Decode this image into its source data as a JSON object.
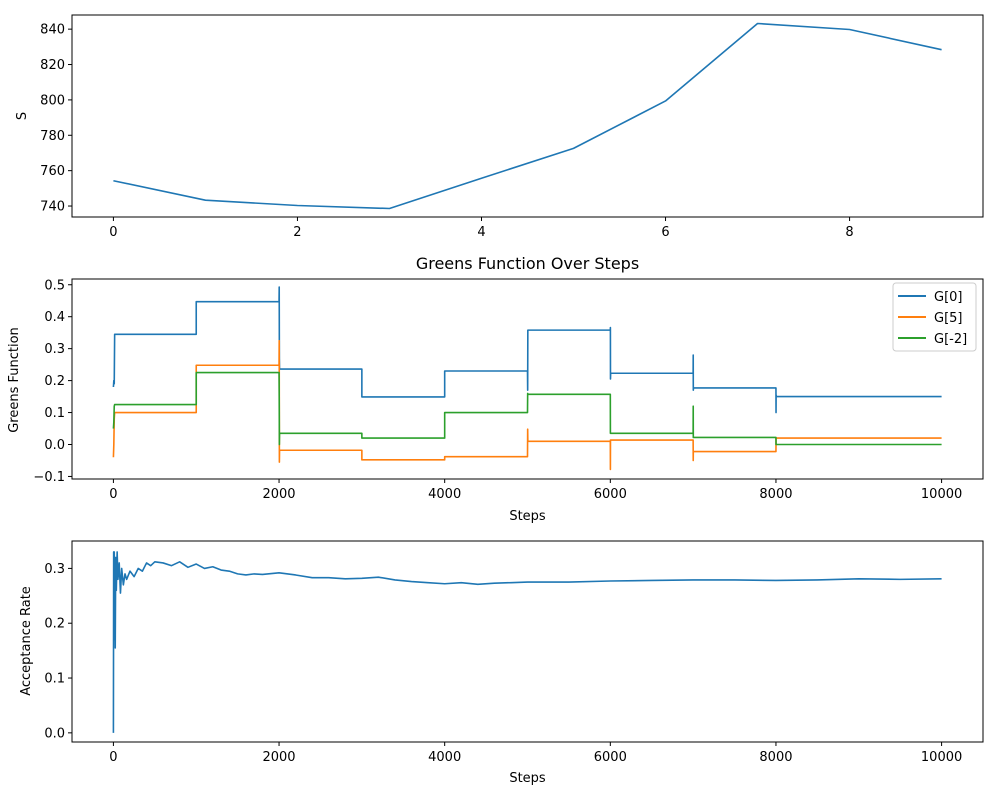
{
  "chart_data": [
    {
      "type": "line",
      "title": "",
      "xlabel": "",
      "ylabel": "S",
      "xlim": [
        -0.45,
        9.45
      ],
      "ylim": [
        733.8,
        848.0
      ],
      "xticks": [
        0,
        2,
        4,
        6,
        8
      ],
      "yticks": [
        740,
        760,
        780,
        800,
        820,
        840
      ],
      "grid": false,
      "series": [
        {
          "color": "#1f77b4",
          "x": [
            0,
            1,
            2,
            3,
            4,
            5,
            6,
            7,
            8,
            9
          ],
          "y": [
            754.3,
            743.3,
            740.3,
            738.6,
            755.7,
            772.6,
            799.4,
            843.2,
            839.8,
            828.4
          ]
        }
      ]
    },
    {
      "type": "line",
      "title": "Greens Function Over Steps",
      "xlabel": "Steps",
      "ylabel": "Greens Function",
      "xlim": [
        -500,
        10500
      ],
      "ylim": [
        -0.108,
        0.518
      ],
      "xticks": [
        0,
        2000,
        4000,
        6000,
        8000,
        10000
      ],
      "yticks": [
        -0.1,
        0.0,
        0.1,
        0.2,
        0.3,
        0.4,
        0.5
      ],
      "grid": false,
      "legend_position": "top-right",
      "series": [
        {
          "name": "G[0]",
          "color": "#1f77b4",
          "x": [
            0,
            5,
            10,
            15,
            1000,
            1000,
            2000,
            2002,
            2004,
            2006,
            3000,
            3000,
            4000,
            4000,
            5000,
            5002,
            5004,
            6000,
            6001,
            6002,
            6004,
            7000,
            7001,
            7002,
            7004,
            8000,
            8001,
            8002,
            8004,
            10000
          ],
          "y": [
            0.18,
            0.2,
            0.19,
            0.345,
            0.345,
            0.447,
            0.447,
            0.493,
            0.27,
            0.236,
            0.236,
            0.149,
            0.149,
            0.23,
            0.23,
            0.17,
            0.358,
            0.358,
            0.366,
            0.205,
            0.223,
            0.223,
            0.28,
            0.17,
            0.177,
            0.177,
            0.1,
            0.155,
            0.15,
            0.15
          ]
        },
        {
          "name": "G[5]",
          "color": "#ff7f0e",
          "x": [
            0,
            5,
            10,
            15,
            1000,
            1000,
            2000,
            2002,
            2004,
            2006,
            3000,
            3000,
            4000,
            4000,
            5000,
            5002,
            5004,
            6000,
            6001,
            6002,
            6004,
            7000,
            7001,
            7002,
            7004,
            8000,
            8001,
            10000
          ],
          "y": [
            -0.04,
            0.0,
            0.08,
            0.1,
            0.1,
            0.248,
            0.248,
            0.325,
            -0.055,
            -0.018,
            -0.018,
            -0.048,
            -0.048,
            -0.038,
            -0.038,
            0.048,
            0.01,
            0.01,
            -0.078,
            0.014,
            0.014,
            0.014,
            -0.05,
            -0.022,
            -0.022,
            -0.022,
            0.02,
            0.02
          ]
        },
        {
          "name": "G[-2]",
          "color": "#2ca02c",
          "x": [
            0,
            5,
            10,
            15,
            1000,
            1000,
            2000,
            2002,
            2004,
            2006,
            3000,
            3000,
            4000,
            4000,
            5000,
            5002,
            5004,
            6000,
            6001,
            6002,
            7000,
            7001,
            7002,
            7004,
            8000,
            8001,
            10000
          ],
          "y": [
            0.05,
            0.07,
            0.12,
            0.125,
            0.125,
            0.225,
            0.225,
            0.15,
            0.0,
            0.035,
            0.035,
            0.02,
            0.02,
            0.1,
            0.1,
            0.16,
            0.157,
            0.157,
            0.035,
            0.035,
            0.035,
            0.12,
            0.022,
            0.022,
            0.022,
            0.0,
            0.0
          ]
        }
      ]
    },
    {
      "type": "line",
      "title": "",
      "xlabel": "Steps",
      "ylabel": "Acceptance Rate",
      "xlim": [
        -500,
        10500
      ],
      "ylim": [
        -0.0167,
        0.35
      ],
      "xticks": [
        0,
        2000,
        4000,
        6000,
        8000,
        10000
      ],
      "yticks": [
        0.0,
        0.1,
        0.2,
        0.3
      ],
      "grid": false,
      "series": [
        {
          "color": "#1f77b4",
          "x": [
            0,
            3,
            6,
            10,
            14,
            18,
            22,
            28,
            35,
            45,
            55,
            70,
            85,
            100,
            120,
            140,
            160,
            200,
            250,
            300,
            350,
            400,
            450,
            500,
            600,
            700,
            800,
            900,
            1000,
            1100,
            1200,
            1300,
            1400,
            1500,
            1600,
            1700,
            1800,
            2000,
            2200,
            2400,
            2600,
            2800,
            3000,
            3200,
            3400,
            3600,
            3800,
            4000,
            4200,
            4400,
            4600,
            4800,
            5000,
            5500,
            6000,
            6500,
            7000,
            7500,
            8000,
            8500,
            9000,
            9500,
            10000
          ],
          "y": [
            0.0,
            0.33,
            0.17,
            0.33,
            0.25,
            0.3,
            0.155,
            0.32,
            0.26,
            0.33,
            0.28,
            0.31,
            0.255,
            0.3,
            0.27,
            0.29,
            0.28,
            0.295,
            0.285,
            0.3,
            0.295,
            0.31,
            0.305,
            0.312,
            0.31,
            0.305,
            0.312,
            0.302,
            0.308,
            0.3,
            0.303,
            0.297,
            0.295,
            0.29,
            0.288,
            0.29,
            0.289,
            0.292,
            0.288,
            0.283,
            0.283,
            0.281,
            0.282,
            0.284,
            0.279,
            0.276,
            0.274,
            0.272,
            0.274,
            0.271,
            0.273,
            0.274,
            0.275,
            0.275,
            0.277,
            0.278,
            0.279,
            0.279,
            0.278,
            0.279,
            0.281,
            0.28,
            0.281
          ]
        }
      ]
    }
  ]
}
